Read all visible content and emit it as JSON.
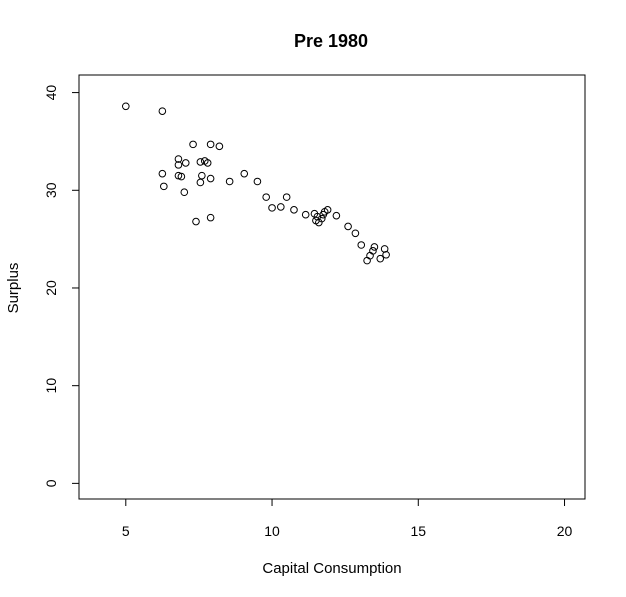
{
  "chart_data": {
    "type": "scatter",
    "title": "Pre 1980",
    "xlabel": "Capital Consumption",
    "ylabel": "Surplus",
    "xlim": [
      3.4,
      20.7
    ],
    "ylim": [
      -1.6,
      41.8
    ],
    "xticks": [
      5,
      10,
      15,
      20
    ],
    "yticks": [
      0,
      10,
      20,
      30,
      40
    ],
    "grid": false,
    "marker": "open-circle",
    "point_color": "#000000",
    "points": [
      [
        5.0,
        38.6
      ],
      [
        6.25,
        38.1
      ],
      [
        6.25,
        31.7
      ],
      [
        6.3,
        30.4
      ],
      [
        6.8,
        33.2
      ],
      [
        6.8,
        32.6
      ],
      [
        6.8,
        31.5
      ],
      [
        6.9,
        31.4
      ],
      [
        7.0,
        29.8
      ],
      [
        7.05,
        32.8
      ],
      [
        7.3,
        34.7
      ],
      [
        7.4,
        26.8
      ],
      [
        7.55,
        32.9
      ],
      [
        7.55,
        30.8
      ],
      [
        7.6,
        31.5
      ],
      [
        7.7,
        33.0
      ],
      [
        7.8,
        32.8
      ],
      [
        7.9,
        27.2
      ],
      [
        7.9,
        31.2
      ],
      [
        7.9,
        34.7
      ],
      [
        8.2,
        34.5
      ],
      [
        8.55,
        30.9
      ],
      [
        9.05,
        31.7
      ],
      [
        9.5,
        30.9
      ],
      [
        9.8,
        29.3
      ],
      [
        10.0,
        28.2
      ],
      [
        10.3,
        28.3
      ],
      [
        10.5,
        29.3
      ],
      [
        10.75,
        28.0
      ],
      [
        11.15,
        27.5
      ],
      [
        11.45,
        27.6
      ],
      [
        11.5,
        26.9
      ],
      [
        11.55,
        27.3
      ],
      [
        11.6,
        26.7
      ],
      [
        11.7,
        27.1
      ],
      [
        11.75,
        27.5
      ],
      [
        11.8,
        27.8
      ],
      [
        11.9,
        28.0
      ],
      [
        12.2,
        27.4
      ],
      [
        12.6,
        26.3
      ],
      [
        12.85,
        25.6
      ],
      [
        13.05,
        24.4
      ],
      [
        13.25,
        22.8
      ],
      [
        13.35,
        23.3
      ],
      [
        13.45,
        23.8
      ],
      [
        13.5,
        24.2
      ],
      [
        13.7,
        23.0
      ],
      [
        13.85,
        24.0
      ],
      [
        13.9,
        23.4
      ]
    ]
  }
}
